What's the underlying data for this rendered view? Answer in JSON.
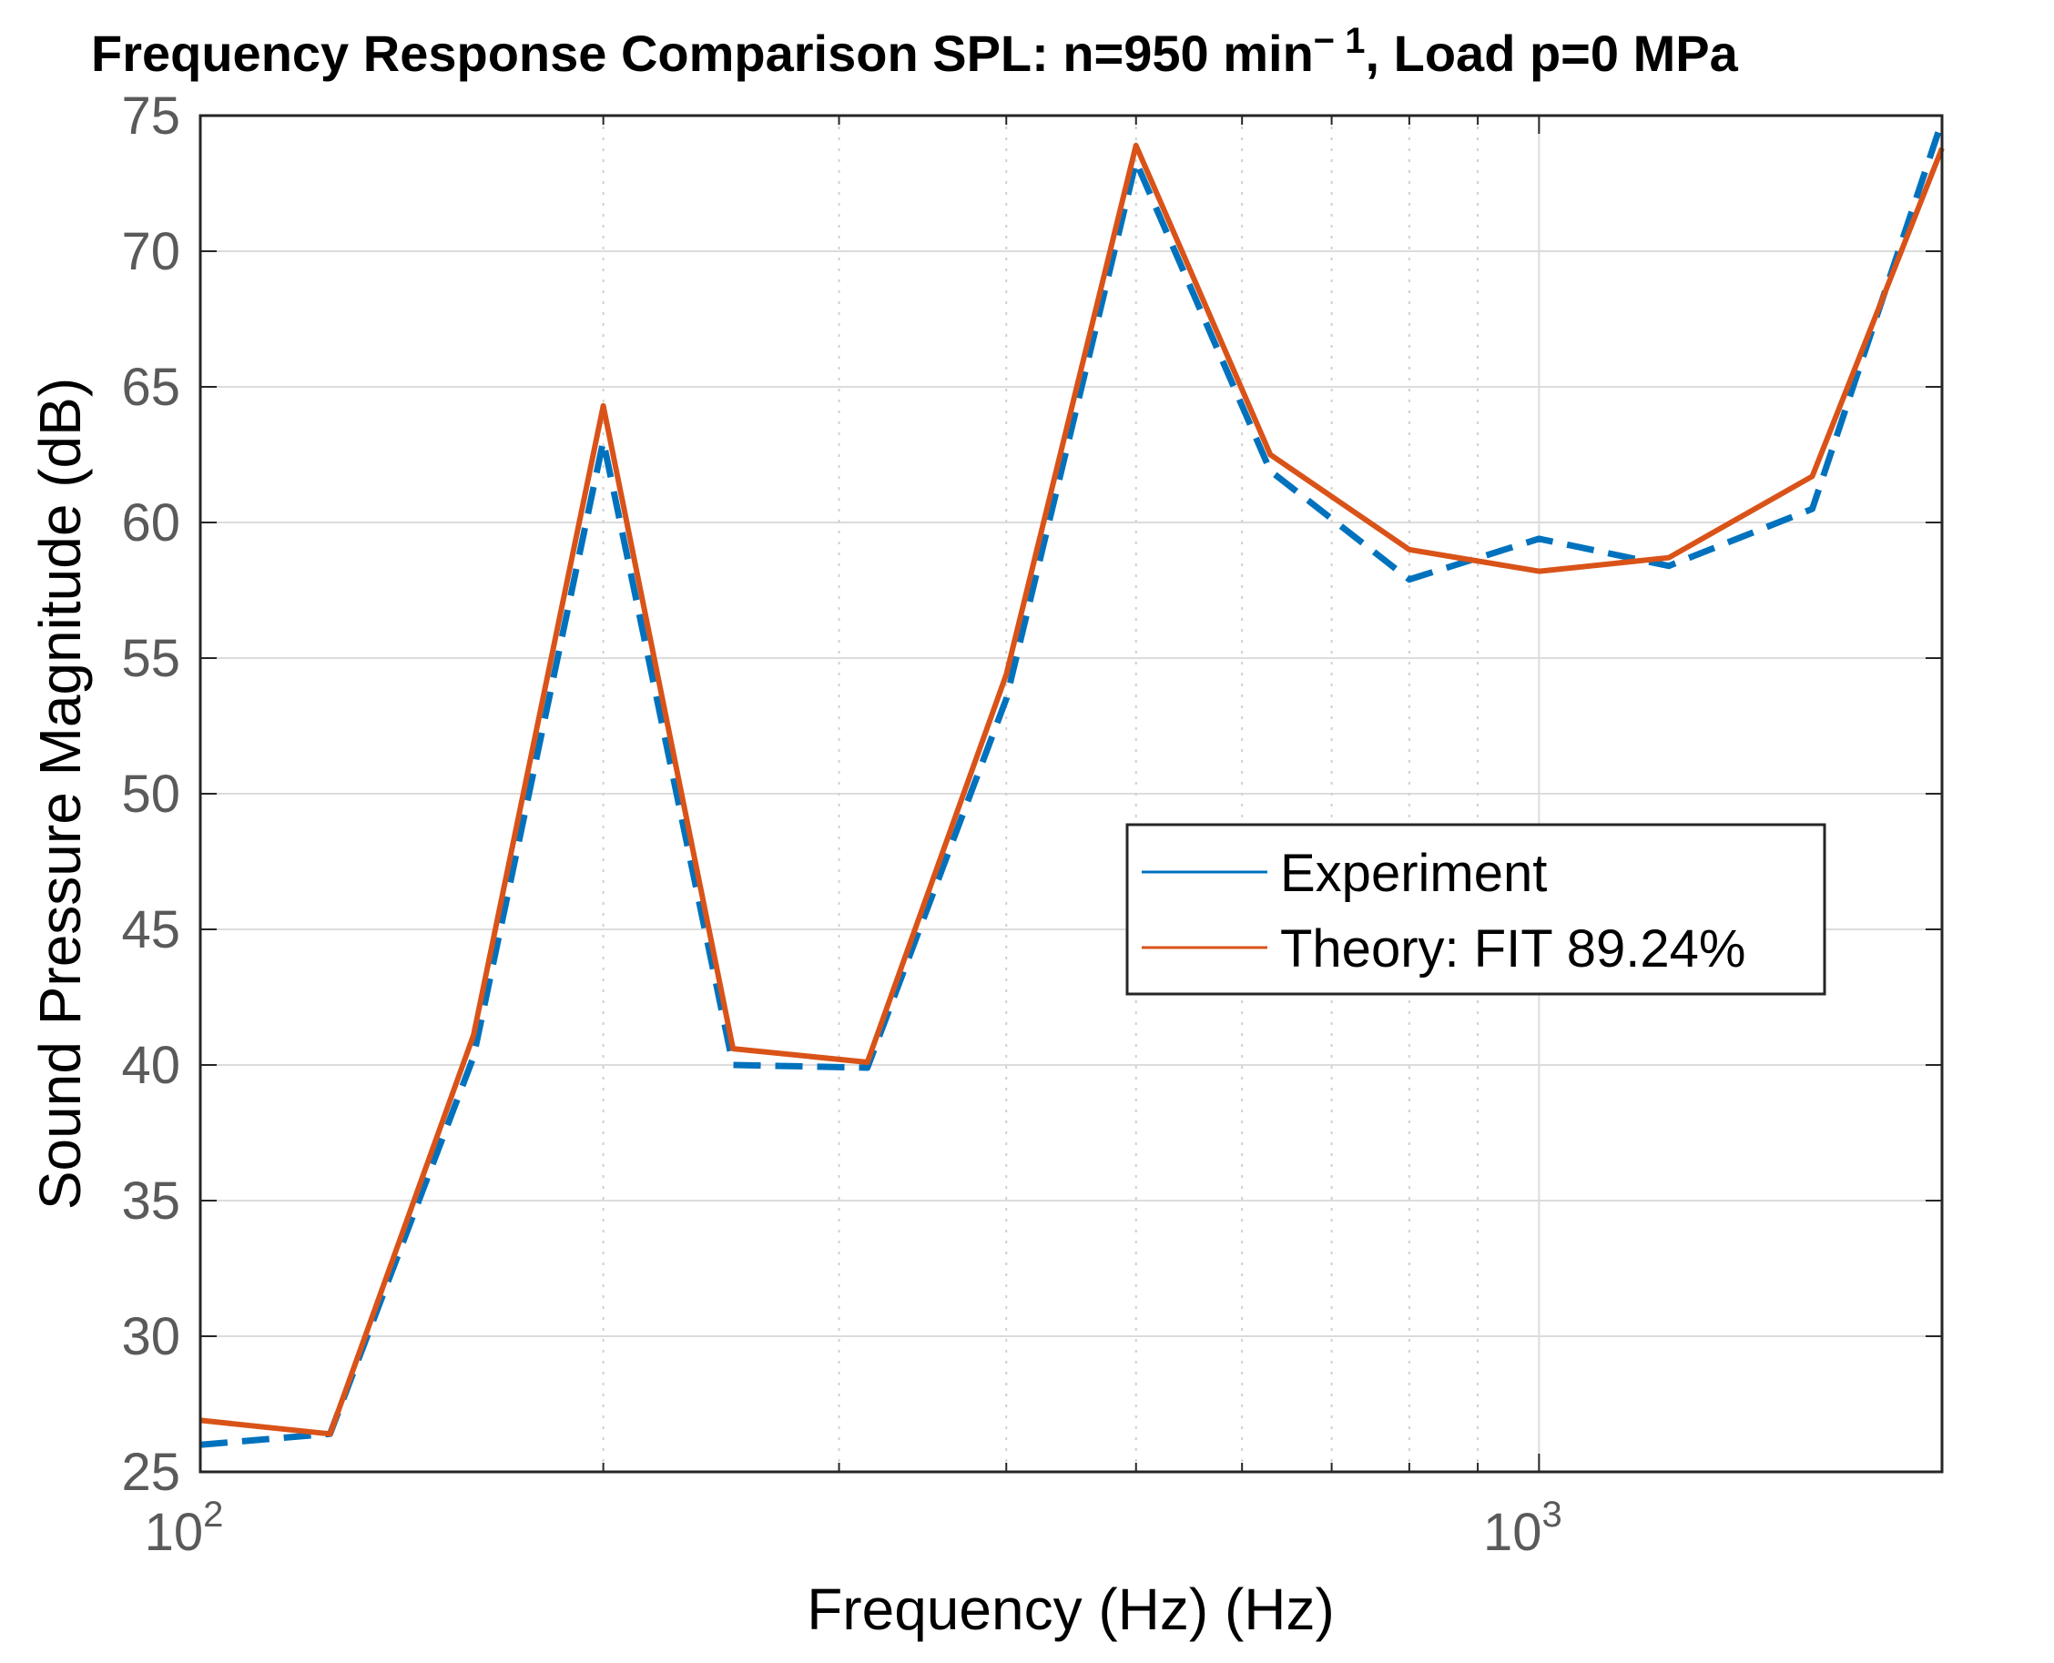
{
  "chart_data": {
    "type": "line",
    "title": "Frequency Response Comparison SPL: n=950 min",
    "title_superscript": "− 1",
    "title_suffix": ", Load p=0 MPa",
    "xlabel": "Frequency  (Hz)  (Hz)",
    "ylabel": "Sound Pressure Magnitude (dB)",
    "xscale": "log",
    "xlim": [
      100,
      2000
    ],
    "ylim": [
      25,
      75
    ],
    "grid": true,
    "legend_position": "center-right",
    "yticks": [
      "25",
      "30",
      "35",
      "40",
      "45",
      "50",
      "55",
      "60",
      "65",
      "70",
      "75"
    ],
    "xticks": [
      {
        "base": "10",
        "exp": "2",
        "value": 100
      },
      {
        "base": "10",
        "exp": "3",
        "value": 1000
      }
    ],
    "x": [
      100,
      125,
      160,
      200,
      250,
      315,
      400,
      500,
      630,
      800,
      1000,
      1250,
      1600,
      2000
    ],
    "series": [
      {
        "name": "Experiment",
        "color": "#0072BD",
        "style": "dashed",
        "values": [
          26.0,
          26.4,
          40.3,
          63.0,
          40.0,
          39.9,
          53.5,
          73.3,
          61.9,
          57.9,
          59.4,
          58.4,
          60.5,
          74.8
        ]
      },
      {
        "name": "Theory: FIT 89.24%",
        "color": "#D95319",
        "style": "solid",
        "values": [
          26.9,
          26.4,
          41.1,
          64.3,
          40.6,
          40.1,
          54.4,
          73.9,
          62.5,
          59.0,
          58.2,
          58.7,
          61.7,
          73.8
        ]
      }
    ]
  }
}
